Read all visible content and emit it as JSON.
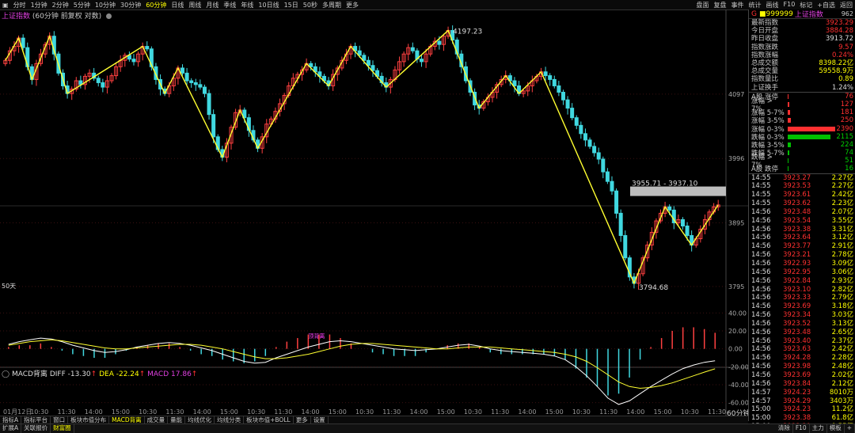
{
  "toolbar": {
    "items": [
      "分时",
      "1分钟",
      "2分钟",
      "5分钟",
      "10分钟",
      "30分钟",
      "60分钟",
      "日线",
      "周线",
      "月线",
      "季线",
      "年线",
      "10日线",
      "15日",
      "50秒",
      "多周期",
      "更多"
    ],
    "active_index": 6,
    "right_items": [
      "盘面",
      "复盘",
      "事件",
      "统计",
      "画线",
      "F10",
      "标记",
      "+自选",
      "返回"
    ]
  },
  "chart": {
    "title_name": "上证指数",
    "title_sub": "(60分钟 前复权 对数)",
    "price_axis": [
      "4097",
      "3996",
      "3895",
      "3795"
    ],
    "high_label": "4197.23",
    "low_label": "3794.68",
    "box_label": "3955.71 - 3937.10",
    "bar_count_label": "50天",
    "macd_title": "MACD背离",
    "macd_diff_label": "DIFF",
    "macd_diff": "-13.30",
    "macd_dea_label": "DEA",
    "macd_dea": "-22.24",
    "macd_macd_label": "MACD",
    "macd_macd": "17.86",
    "macd_axis": [
      "40.00",
      "20.00",
      "0.00",
      "-20.00",
      "-40.00",
      "-60.00"
    ],
    "macd_marker": "顶背离",
    "time_axis": [
      "01月12日",
      "10:30",
      "11:30",
      "14:00",
      "15:00",
      "10:30",
      "11:30",
      "14:00",
      "15:00",
      "10:30",
      "11:30",
      "14:00",
      "15:00",
      "10:30",
      "11:30",
      "14:00",
      "15:00",
      "10:30",
      "11:30",
      "14:00",
      "15:00",
      "10:30",
      "11:30",
      "14:00",
      "15:00",
      "10:30",
      "11:30"
    ],
    "period_label": "60分钟"
  },
  "panel": {
    "code": "999999",
    "name": "上证指数",
    "tag": "962",
    "stats": [
      {
        "label": "最新指数",
        "value": "3923.29",
        "color": "red"
      },
      {
        "label": "今日开盘",
        "value": "3884.28",
        "color": "red"
      },
      {
        "label": "昨日收盘",
        "value": "3913.72",
        "color": "white"
      },
      {
        "label": "指数涨跌",
        "value": "9.57",
        "color": "red"
      },
      {
        "label": "指数涨幅",
        "value": "0.24%",
        "color": "red"
      },
      {
        "label": "总成交额",
        "value": "8398.22亿",
        "color": "yellow"
      },
      {
        "label": "总成交量",
        "value": "59558.9万",
        "color": "yellow"
      },
      {
        "label": "指数量比",
        "value": "0.89",
        "color": "yellow"
      },
      {
        "label": "上证换手",
        "value": "1.24%",
        "color": "white"
      }
    ],
    "breadth": [
      {
        "label": "A股 涨停",
        "value": "76",
        "color": "red",
        "bar": 0
      },
      {
        "label": "涨幅 > 7%",
        "value": "127",
        "color": "red",
        "bar": 2
      },
      {
        "label": "涨幅 5-7%",
        "value": "181",
        "color": "red",
        "bar": 3
      },
      {
        "label": "涨幅 3-5%",
        "value": "250",
        "color": "red",
        "bar": 4
      },
      {
        "label": "涨幅 0-3%",
        "value": "2390",
        "color": "red",
        "bar": 60
      },
      {
        "label": "跌幅 0-3%",
        "value": "2115",
        "color": "green",
        "bar": 54
      },
      {
        "label": "跌幅 3-5%",
        "value": "224",
        "color": "green",
        "bar": 4
      },
      {
        "label": "跌幅 5-7%",
        "value": "74",
        "color": "green",
        "bar": 2
      },
      {
        "label": "跌幅 > 7%",
        "value": "51",
        "color": "green",
        "bar": 1
      },
      {
        "label": "A股 跌停",
        "value": "16",
        "color": "green",
        "bar": 0
      }
    ],
    "ticks": [
      {
        "t": "14:55",
        "p": "3923.27",
        "q": "2.27亿"
      },
      {
        "t": "14:55",
        "p": "3923.53",
        "q": "2.27亿"
      },
      {
        "t": "14:55",
        "p": "3923.61",
        "q": "2.42亿"
      },
      {
        "t": "14:55",
        "p": "3923.62",
        "q": "2.23亿"
      },
      {
        "t": "14:56",
        "p": "3923.48",
        "q": "2.07亿"
      },
      {
        "t": "14:56",
        "p": "3923.54",
        "q": "3.55亿"
      },
      {
        "t": "14:56",
        "p": "3923.38",
        "q": "3.31亿"
      },
      {
        "t": "14:56",
        "p": "3923.64",
        "q": "3.12亿"
      },
      {
        "t": "14:56",
        "p": "3923.77",
        "q": "2.91亿"
      },
      {
        "t": "14:56",
        "p": "3923.21",
        "q": "2.78亿"
      },
      {
        "t": "14:56",
        "p": "3922.93",
        "q": "3.09亿"
      },
      {
        "t": "14:56",
        "p": "3922.95",
        "q": "3.06亿"
      },
      {
        "t": "14:56",
        "p": "3922.84",
        "q": "2.93亿"
      },
      {
        "t": "14:56",
        "p": "3923.10",
        "q": "2.82亿"
      },
      {
        "t": "14:56",
        "p": "3923.33",
        "q": "2.79亿"
      },
      {
        "t": "14:56",
        "p": "3923.69",
        "q": "3.18亿"
      },
      {
        "t": "14:56",
        "p": "3923.34",
        "q": "3.03亿"
      },
      {
        "t": "14:56",
        "p": "3923.52",
        "q": "3.13亿"
      },
      {
        "t": "14:56",
        "p": "3923.48",
        "q": "2.65亿"
      },
      {
        "t": "14:56",
        "p": "3923.40",
        "q": "2.37亿"
      },
      {
        "t": "14:56",
        "p": "3923.63",
        "q": "2.42亿"
      },
      {
        "t": "14:56",
        "p": "3924.28",
        "q": "2.28亿"
      },
      {
        "t": "14:56",
        "p": "3923.98",
        "q": "2.48亿"
      },
      {
        "t": "14:56",
        "p": "3923.69",
        "q": "2.02亿"
      },
      {
        "t": "14:56",
        "p": "3923.84",
        "q": "2.12亿"
      },
      {
        "t": "14:57",
        "p": "3924.23",
        "q": "8010万"
      },
      {
        "t": "14:57",
        "p": "3924.29",
        "q": "3403万"
      },
      {
        "t": "15:00",
        "p": "3924.23",
        "q": "11.2亿"
      },
      {
        "t": "15:00",
        "p": "3923.38",
        "q": "61.8亿"
      },
      {
        "t": "15:00",
        "p": "3923.29",
        "q": "9.55亿"
      }
    ]
  },
  "tabs_row1": [
    "指标A",
    "指标平台",
    "窗口",
    "板块市值分布",
    "MACD背离",
    "成交量",
    "量能",
    "均线优化",
    "均线分类",
    "板块市值+BOLL",
    "更多",
    "设置"
  ],
  "tabs_row1_active": 4,
  "tabs_row2": [
    "扩展A",
    "关联报价",
    "财富圈"
  ],
  "tabs_row2_right": [
    "清除",
    "F10",
    "主力",
    "模板",
    "+"
  ],
  "chart_data": {
    "type": "candlestick",
    "title": "上证指数 (60分钟 前复权 对数)",
    "ylim": [
      3780,
      4210
    ],
    "yticks": [
      4097,
      3996,
      3895,
      3795
    ],
    "high": 4197.23,
    "low": 3794.68,
    "closes": [
      4150,
      4165,
      4172,
      4185,
      4170,
      4140,
      4120,
      4145,
      4160,
      4175,
      4188,
      4160,
      4130,
      4110,
      4098,
      4105,
      4118,
      4112,
      4125,
      4130,
      4122,
      4115,
      4108,
      4118,
      4126,
      4140,
      4150,
      4158,
      4152,
      4148,
      4160,
      4172,
      4168,
      4140,
      4120,
      4105,
      4098,
      4110,
      4122,
      4138,
      4130,
      4118,
      4115,
      4112,
      4108,
      4098,
      4065,
      4030,
      4010,
      3998,
      4020,
      4045,
      4068,
      4072,
      4060,
      4040,
      4025,
      4012,
      4030,
      4050,
      4058,
      4070,
      4082,
      4095,
      4110,
      4122,
      4128,
      4135,
      4145,
      4140,
      4132,
      4125,
      4118,
      4110,
      4128,
      4138,
      4150,
      4160,
      4172,
      4165,
      4158,
      4150,
      4142,
      4134,
      4125,
      4115,
      4108,
      4120,
      4135,
      4148,
      4160,
      4170,
      4165,
      4152,
      4148,
      4160,
      4172,
      4180,
      4175,
      4188,
      4197,
      4182,
      4160,
      4140,
      4118,
      4100,
      4080,
      4075,
      4085,
      4092,
      4100,
      4112,
      4120,
      4126,
      4118,
      4110,
      4098,
      4102,
      4110,
      4118,
      4125,
      4132,
      4126,
      4120,
      4110,
      4100,
      4088,
      4075,
      4060,
      4048,
      4035,
      4025,
      4015,
      4005,
      3995,
      3975,
      3960,
      3945,
      3910,
      3875,
      3840,
      3810,
      3800,
      3815,
      3840,
      3860,
      3880,
      3898,
      3910,
      3920,
      3915,
      3895,
      3900,
      3890,
      3875,
      3860,
      3870,
      3885,
      3900,
      3912,
      3920,
      3923
    ]
  },
  "macd_data": {
    "dif": [
      5,
      8,
      10,
      12,
      11,
      8,
      4,
      1,
      -2,
      -4,
      -3,
      -1,
      2,
      4,
      6,
      7,
      6,
      4,
      1,
      -2,
      -6,
      -10,
      -14,
      -16,
      -15,
      -10,
      -6,
      -2,
      2,
      5,
      8,
      9,
      8,
      6,
      4,
      2,
      0,
      -1,
      -2,
      -1,
      0,
      2,
      4,
      5,
      3,
      0,
      -2,
      -3,
      -4,
      -5,
      -6,
      -8,
      -12,
      -20,
      -30,
      -42,
      -55,
      -62,
      -58,
      -50,
      -42,
      -35,
      -28,
      -22,
      -18,
      -15,
      -13.3
    ],
    "dea": [
      4,
      6,
      8,
      9,
      10,
      9,
      7,
      5,
      3,
      1,
      0,
      0,
      1,
      2,
      3,
      4,
      5,
      5,
      4,
      2,
      0,
      -3,
      -6,
      -9,
      -11,
      -11,
      -10,
      -8,
      -6,
      -3,
      0,
      3,
      5,
      6,
      6,
      5,
      4,
      3,
      2,
      1,
      0,
      0,
      1,
      2,
      2,
      2,
      1,
      0,
      -1,
      -2,
      -3,
      -4,
      -6,
      -9,
      -14,
      -21,
      -29,
      -37,
      -42,
      -44,
      -43,
      -41,
      -38,
      -34,
      -30,
      -26,
      -22.24
    ]
  }
}
